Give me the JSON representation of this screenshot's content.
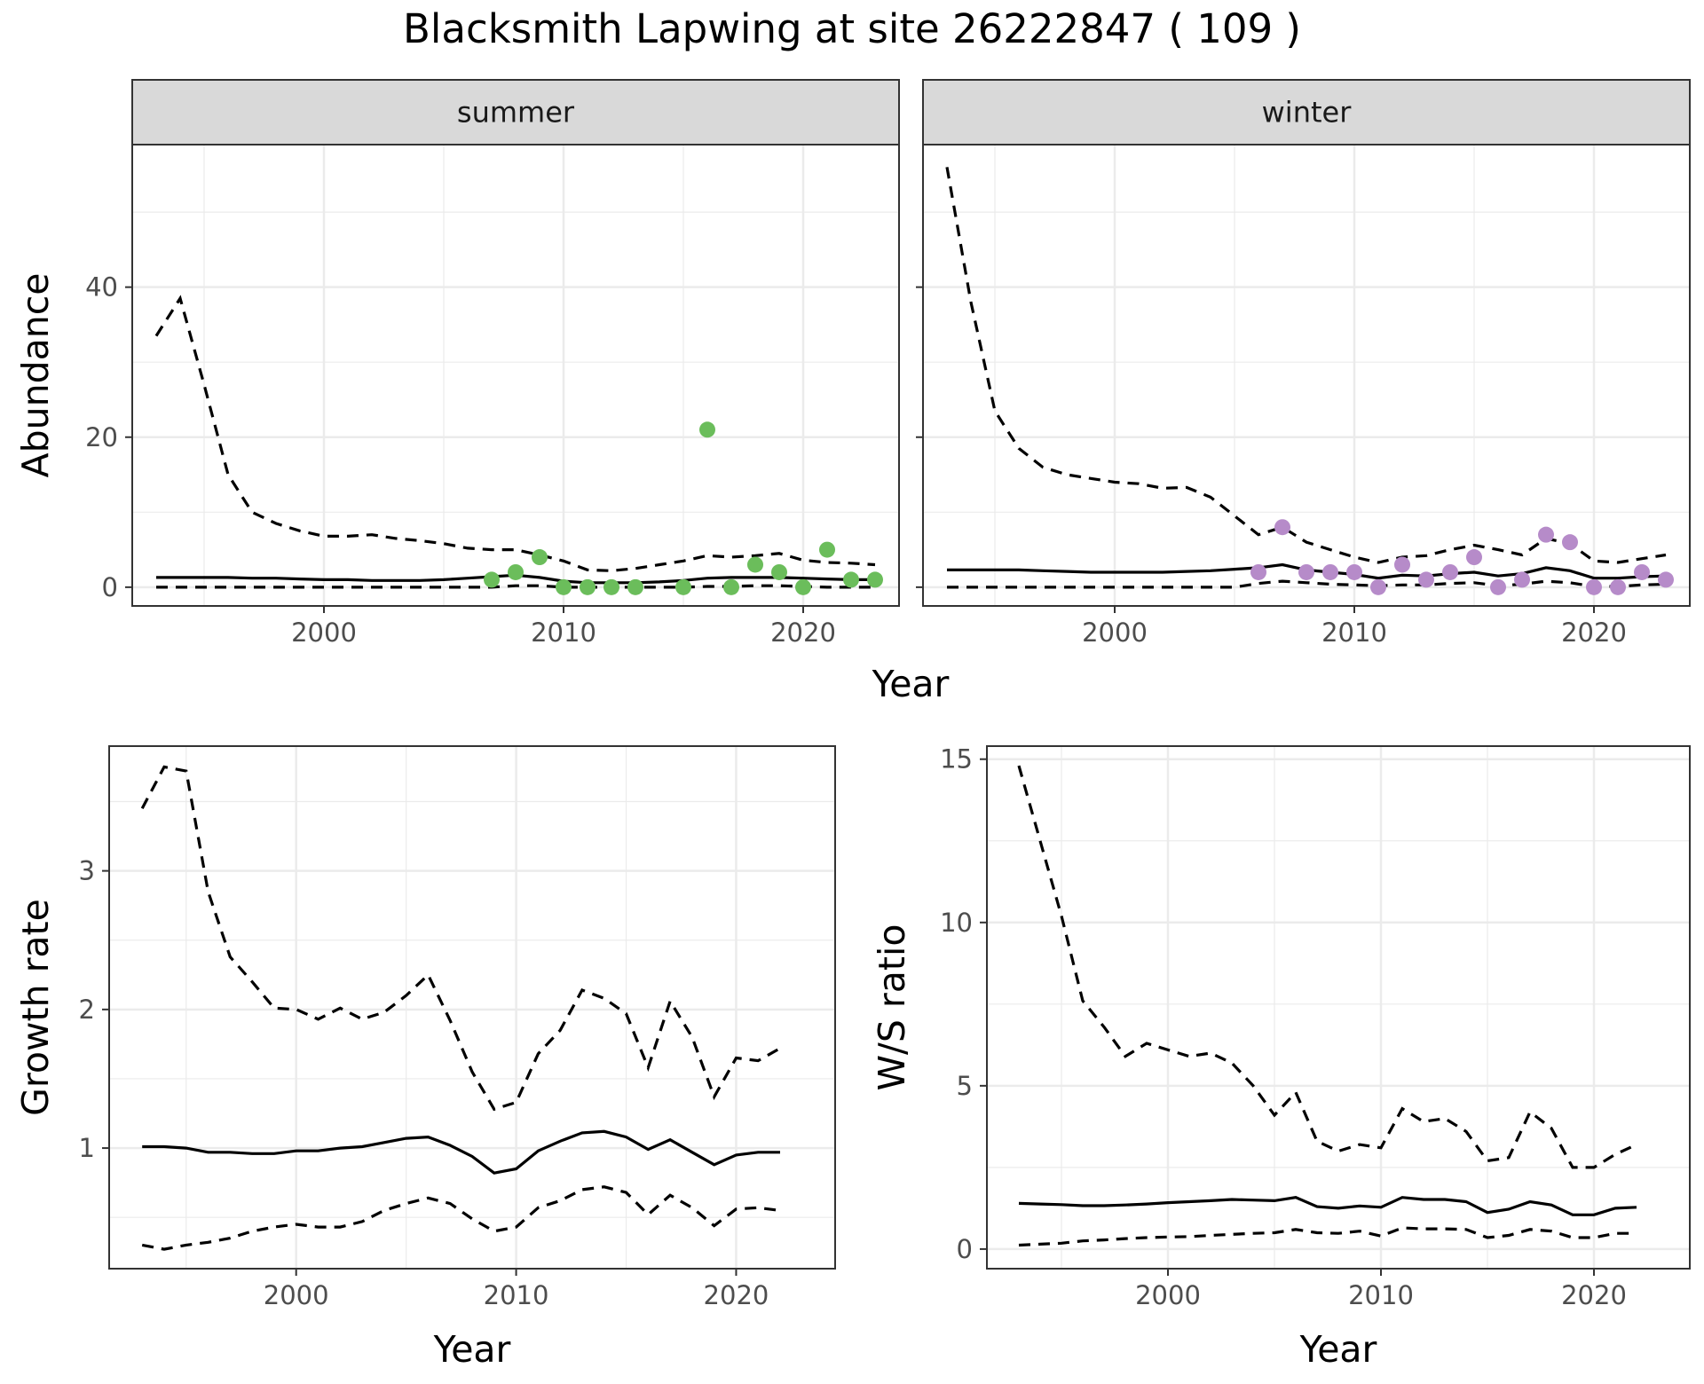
{
  "title": "Blacksmith Lapwing at site 26222847 ( 109 )",
  "colors": {
    "summer_points": "#6bbd5b",
    "winter_points": "#b68bc9",
    "line": "#000000",
    "grid": "#ebebeb",
    "strip_bg": "#d9d9d9"
  },
  "chart_data": [
    {
      "type": "line",
      "facet": "summer",
      "xlabel": "Year",
      "ylabel": "Abundance",
      "xlim": [
        1992,
        2024
      ],
      "ylim": [
        -2.5,
        59
      ],
      "xticks": [
        "2000",
        "2010",
        "2020"
      ],
      "yticks": [
        "0",
        "20",
        "40"
      ],
      "grid": true,
      "x": [
        1993,
        1994,
        1995,
        1996,
        1997,
        1998,
        1999,
        2000,
        2001,
        2002,
        2003,
        2004,
        2005,
        2006,
        2007,
        2008,
        2009,
        2010,
        2011,
        2012,
        2013,
        2014,
        2015,
        2016,
        2017,
        2018,
        2019,
        2020,
        2021,
        2022,
        2023
      ],
      "series": [
        {
          "role": "estimate",
          "style": "solid",
          "values": [
            1.3,
            1.3,
            1.3,
            1.3,
            1.2,
            1.2,
            1.1,
            1.0,
            1.0,
            0.9,
            0.9,
            0.9,
            1.0,
            1.2,
            1.4,
            1.6,
            1.3,
            0.8,
            0.6,
            0.6,
            0.6,
            0.7,
            0.9,
            1.2,
            1.3,
            1.3,
            1.3,
            1.2,
            1.1,
            1.0,
            1.0
          ]
        },
        {
          "role": "upper",
          "style": "dashed",
          "values": [
            33.5,
            38.5,
            27.0,
            15.0,
            10.0,
            8.5,
            7.5,
            6.8,
            6.8,
            7.0,
            6.5,
            6.2,
            5.8,
            5.2,
            5.0,
            5.0,
            4.3,
            3.5,
            2.3,
            2.2,
            2.5,
            3.0,
            3.5,
            4.2,
            4.0,
            4.2,
            4.5,
            3.6,
            3.3,
            3.2,
            3.0
          ]
        },
        {
          "role": "lower",
          "style": "dashed",
          "values": [
            0,
            0,
            0,
            0,
            0,
            0,
            0,
            0,
            0,
            0,
            0,
            0,
            0,
            0,
            0,
            0.2,
            0.2,
            0,
            0,
            0,
            0,
            0,
            0,
            0.1,
            0.1,
            0.2,
            0.2,
            0.1,
            0,
            0,
            0
          ]
        }
      ],
      "points": {
        "x": [
          2007,
          2008,
          2009,
          2010,
          2011,
          2012,
          2013,
          2015,
          2016,
          2017,
          2018,
          2019,
          2020,
          2021,
          2022,
          2023
        ],
        "y": [
          1,
          2,
          4,
          0,
          0,
          0,
          0,
          0,
          21,
          0,
          3,
          2,
          0,
          5,
          1,
          1
        ]
      }
    },
    {
      "type": "line",
      "facet": "winter",
      "xlabel": "Year",
      "ylabel": "Abundance",
      "xlim": [
        1992,
        2024
      ],
      "ylim": [
        -2.5,
        59
      ],
      "xticks": [
        "2000",
        "2010",
        "2020"
      ],
      "yticks": [
        "0",
        "20",
        "40"
      ],
      "grid": true,
      "x": [
        1993,
        1994,
        1995,
        1996,
        1997,
        1998,
        1999,
        2000,
        2001,
        2002,
        2003,
        2004,
        2005,
        2006,
        2007,
        2008,
        2009,
        2010,
        2011,
        2012,
        2013,
        2014,
        2015,
        2016,
        2017,
        2018,
        2019,
        2020,
        2021,
        2022,
        2023
      ],
      "series": [
        {
          "role": "estimate",
          "style": "solid",
          "values": [
            2.3,
            2.3,
            2.3,
            2.3,
            2.2,
            2.1,
            2.0,
            2.0,
            2.0,
            2.0,
            2.1,
            2.2,
            2.4,
            2.6,
            3.0,
            2.3,
            2.0,
            1.7,
            1.2,
            1.6,
            1.5,
            1.8,
            2.0,
            1.5,
            1.8,
            2.6,
            2.2,
            1.2,
            1.2,
            1.4,
            1.5
          ]
        },
        {
          "role": "upper",
          "style": "dashed",
          "values": [
            56.0,
            38.0,
            23.5,
            18.5,
            16.0,
            15.0,
            14.5,
            14.0,
            13.8,
            13.2,
            13.3,
            12.0,
            9.5,
            7.0,
            8.0,
            6.0,
            5.0,
            4.0,
            3.3,
            4.0,
            4.2,
            5.0,
            5.6,
            5.0,
            4.3,
            6.5,
            5.8,
            3.5,
            3.3,
            3.8,
            4.3
          ]
        },
        {
          "role": "lower",
          "style": "dashed",
          "values": [
            0,
            0,
            0,
            0,
            0,
            0,
            0,
            0,
            0,
            0,
            0,
            0,
            0,
            0.5,
            0.8,
            0.6,
            0.4,
            0.3,
            0.2,
            0.3,
            0.3,
            0.5,
            0.6,
            0.2,
            0.4,
            0.8,
            0.6,
            0.1,
            0.1,
            0.3,
            0.4
          ]
        }
      ],
      "points": {
        "x": [
          2006,
          2007,
          2008,
          2009,
          2010,
          2011,
          2012,
          2013,
          2014,
          2015,
          2016,
          2017,
          2018,
          2019,
          2020,
          2021,
          2022,
          2023
        ],
        "y": [
          2,
          8,
          2,
          2,
          2,
          0,
          3,
          1,
          2,
          4,
          0,
          1,
          7,
          6,
          0,
          0,
          2,
          1
        ]
      }
    },
    {
      "type": "line",
      "xlabel": "Year",
      "ylabel": "Growth rate",
      "xlim": [
        1991.5,
        2024.5
      ],
      "ylim": [
        0.13,
        3.9
      ],
      "xticks": [
        "2000",
        "2010",
        "2020"
      ],
      "yticks": [
        "1",
        "2",
        "3"
      ],
      "grid": true,
      "x": [
        1993,
        1994,
        1995,
        1996,
        1997,
        1998,
        1999,
        2000,
        2001,
        2002,
        2003,
        2004,
        2005,
        2006,
        2007,
        2008,
        2009,
        2010,
        2011,
        2012,
        2013,
        2014,
        2015,
        2016,
        2017,
        2018,
        2019,
        2020,
        2021,
        2022
      ],
      "series": [
        {
          "role": "estimate",
          "style": "solid",
          "values": [
            1.01,
            1.01,
            1.0,
            0.97,
            0.97,
            0.96,
            0.96,
            0.98,
            0.98,
            1.0,
            1.01,
            1.04,
            1.07,
            1.08,
            1.02,
            0.94,
            0.82,
            0.85,
            0.98,
            1.05,
            1.11,
            1.12,
            1.08,
            0.99,
            1.06,
            0.97,
            0.88,
            0.95,
            0.97,
            0.97
          ]
        },
        {
          "role": "upper",
          "style": "dashed",
          "values": [
            3.45,
            3.75,
            3.72,
            2.85,
            2.38,
            2.2,
            2.01,
            2.0,
            1.93,
            2.01,
            1.93,
            1.98,
            2.1,
            2.25,
            1.92,
            1.55,
            1.28,
            1.33,
            1.68,
            1.85,
            2.14,
            2.08,
            1.97,
            1.58,
            2.06,
            1.8,
            1.37,
            1.65,
            1.63,
            1.72
          ]
        },
        {
          "role": "lower",
          "style": "dashed",
          "values": [
            0.3,
            0.27,
            0.3,
            0.32,
            0.35,
            0.4,
            0.43,
            0.45,
            0.43,
            0.43,
            0.47,
            0.55,
            0.6,
            0.64,
            0.6,
            0.49,
            0.4,
            0.43,
            0.57,
            0.62,
            0.7,
            0.72,
            0.68,
            0.52,
            0.66,
            0.57,
            0.44,
            0.56,
            0.57,
            0.55
          ]
        }
      ]
    },
    {
      "type": "line",
      "xlabel": "Year",
      "ylabel": "W/S ratio",
      "xlim": [
        1991.5,
        2024.5
      ],
      "ylim": [
        -0.6,
        15.4
      ],
      "xticks": [
        "2000",
        "2010",
        "2020"
      ],
      "yticks": [
        "0",
        "5",
        "10",
        "15"
      ],
      "grid": true,
      "x": [
        1993,
        1994,
        1995,
        1996,
        1997,
        1998,
        1999,
        2000,
        2001,
        2002,
        2003,
        2004,
        2005,
        2006,
        2007,
        2008,
        2009,
        2010,
        2011,
        2012,
        2013,
        2014,
        2015,
        2016,
        2017,
        2018,
        2019,
        2020,
        2021,
        2022
      ],
      "series": [
        {
          "role": "estimate",
          "style": "solid",
          "values": [
            1.4,
            1.38,
            1.36,
            1.33,
            1.33,
            1.35,
            1.38,
            1.42,
            1.45,
            1.48,
            1.52,
            1.5,
            1.48,
            1.58,
            1.3,
            1.25,
            1.32,
            1.28,
            1.58,
            1.52,
            1.52,
            1.45,
            1.12,
            1.22,
            1.45,
            1.35,
            1.05,
            1.05,
            1.25,
            1.28
          ]
        },
        {
          "role": "upper",
          "style": "dashed",
          "values": [
            14.8,
            12.5,
            10.2,
            7.6,
            6.8,
            5.9,
            6.3,
            6.1,
            5.9,
            6.0,
            5.7,
            5.0,
            4.1,
            4.8,
            3.3,
            3.0,
            3.2,
            3.1,
            4.3,
            3.9,
            4.0,
            3.6,
            2.7,
            2.8,
            4.2,
            3.7,
            2.5,
            2.5,
            2.9,
            3.2
          ]
        },
        {
          "role": "lower",
          "style": "dashed",
          "values": [
            0.12,
            0.15,
            0.18,
            0.25,
            0.28,
            0.32,
            0.35,
            0.37,
            0.38,
            0.42,
            0.45,
            0.48,
            0.5,
            0.6,
            0.5,
            0.48,
            0.55,
            0.4,
            0.65,
            0.62,
            0.62,
            0.6,
            0.35,
            0.42,
            0.6,
            0.55,
            0.35,
            0.35,
            0.48,
            0.48
          ]
        }
      ]
    }
  ]
}
